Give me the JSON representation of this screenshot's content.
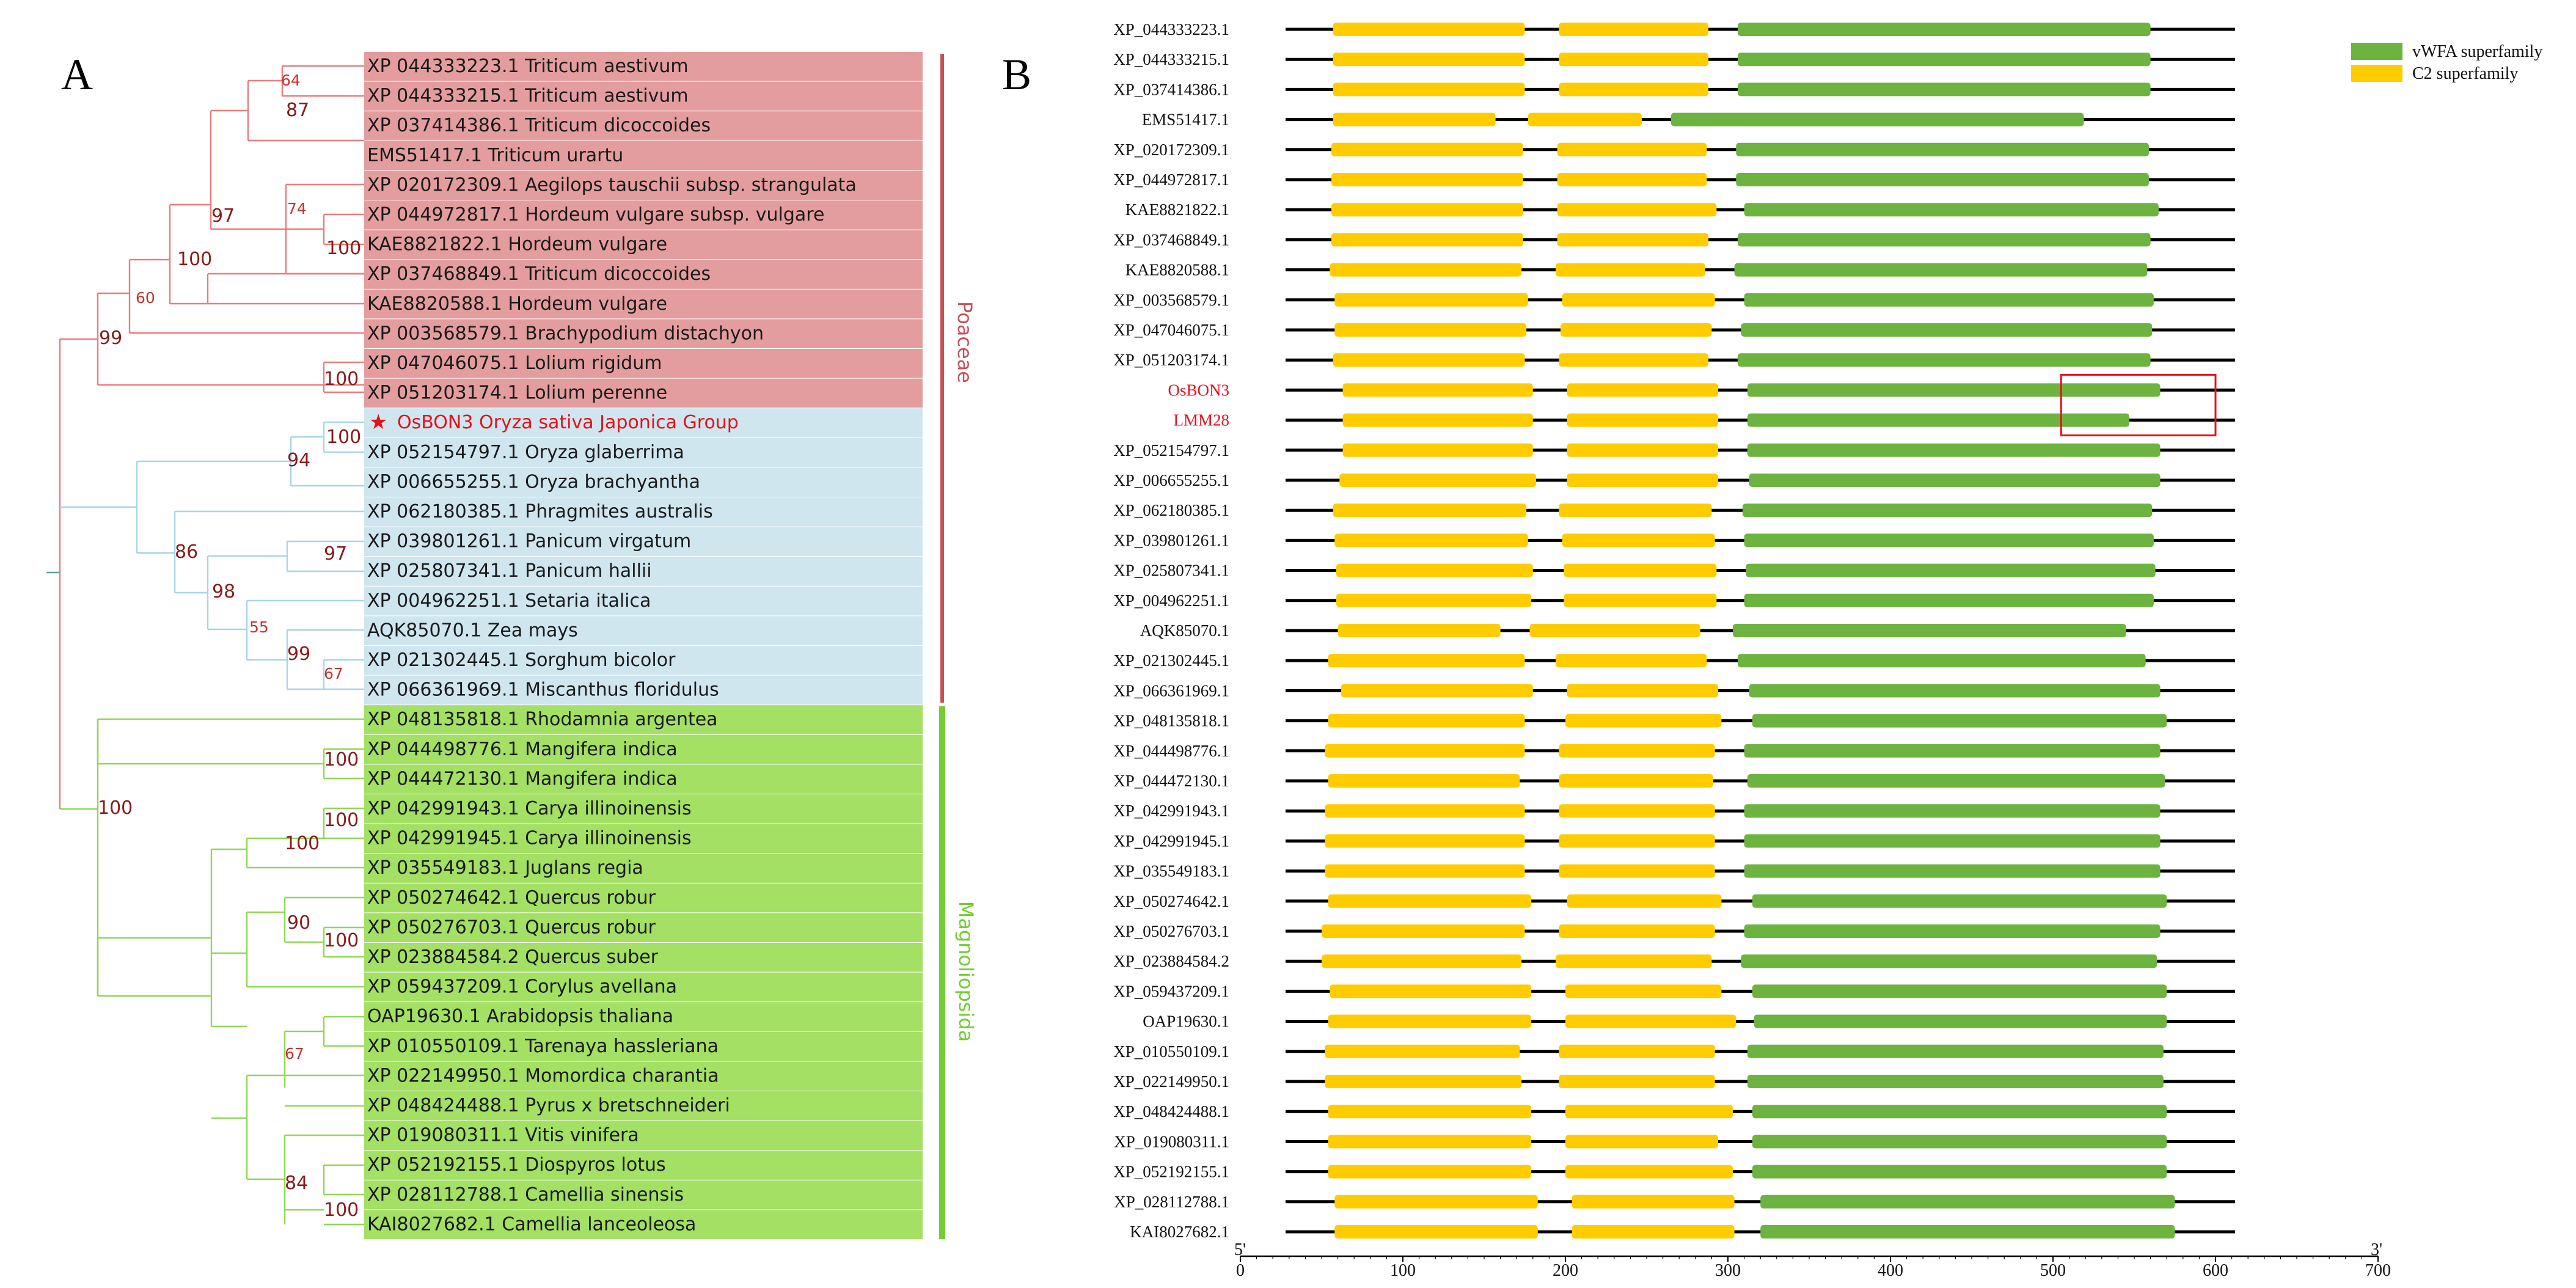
{
  "panels": {
    "a_label": "A",
    "b_label": "B"
  },
  "colors": {
    "poaceae_bg": "#e49d9e",
    "oryza_bg": "#cfe6ef",
    "magnoliopsida_bg": "#a3e064",
    "poaceae_line": "#c8525a",
    "magnoliopsida_line": "#72cc33",
    "poaceae_branch": "#ee7a7a",
    "oryza_branch": "#a8d4e8",
    "magnoliopsida_branch": "#8ed855",
    "vwfa": "#6db33f",
    "c2": "#ffcc00",
    "highlight": "#e8101a"
  },
  "tree": {
    "taxa": [
      {
        "label": "XP 044333223.1 Triticum aestivum",
        "group": "poaceae"
      },
      {
        "label": "XP 044333215.1 Triticum aestivum",
        "group": "poaceae"
      },
      {
        "label": "XP 037414386.1 Triticum dicoccoides",
        "group": "poaceae"
      },
      {
        "label": "EMS51417.1 Triticum urartu",
        "group": "poaceae"
      },
      {
        "label": "XP 020172309.1 Aegilops tauschii subsp. strangulata",
        "group": "poaceae"
      },
      {
        "label": "XP 044972817.1 Hordeum vulgare subsp. vulgare",
        "group": "poaceae"
      },
      {
        "label": "KAE8821822.1 Hordeum vulgare",
        "group": "poaceae"
      },
      {
        "label": "XP 037468849.1 Triticum dicoccoides",
        "group": "poaceae"
      },
      {
        "label": "KAE8820588.1 Hordeum vulgare",
        "group": "poaceae"
      },
      {
        "label": "XP 003568579.1 Brachypodium distachyon",
        "group": "poaceae"
      },
      {
        "label": "XP 047046075.1 Lolium rigidum",
        "group": "poaceae"
      },
      {
        "label": "XP 051203174.1 Lolium perenne",
        "group": "poaceae"
      },
      {
        "label": "OsBON3 Oryza sativa Japonica Group",
        "group": "oryza",
        "highlight": true
      },
      {
        "label": "XP 052154797.1 Oryza glaberrima",
        "group": "oryza"
      },
      {
        "label": "XP 006655255.1 Oryza brachyantha",
        "group": "oryza"
      },
      {
        "label": "XP 062180385.1 Phragmites australis",
        "group": "oryza"
      },
      {
        "label": "XP 039801261.1 Panicum virgatum",
        "group": "oryza"
      },
      {
        "label": "XP 025807341.1 Panicum hallii",
        "group": "oryza"
      },
      {
        "label": "XP 004962251.1 Setaria italica",
        "group": "oryza"
      },
      {
        "label": "AQK85070.1 Zea mays",
        "group": "oryza"
      },
      {
        "label": "XP 021302445.1 Sorghum bicolor",
        "group": "oryza"
      },
      {
        "label": "XP 066361969.1 Miscanthus floridulus",
        "group": "oryza"
      },
      {
        "label": "XP 048135818.1 Rhodamnia argentea",
        "group": "magnoliopsida"
      },
      {
        "label": "XP 044498776.1 Mangifera indica",
        "group": "magnoliopsida"
      },
      {
        "label": "XP 044472130.1 Mangifera indica",
        "group": "magnoliopsida"
      },
      {
        "label": "XP 042991943.1 Carya illinoinensis",
        "group": "magnoliopsida"
      },
      {
        "label": "XP 042991945.1 Carya illinoinensis",
        "group": "magnoliopsida"
      },
      {
        "label": "XP 035549183.1 Juglans regia",
        "group": "magnoliopsida"
      },
      {
        "label": "XP 050274642.1 Quercus robur",
        "group": "magnoliopsida"
      },
      {
        "label": "XP 050276703.1 Quercus robur",
        "group": "magnoliopsida"
      },
      {
        "label": "XP 023884584.2 Quercus suber",
        "group": "magnoliopsida"
      },
      {
        "label": "XP 059437209.1 Corylus avellana",
        "group": "magnoliopsida"
      },
      {
        "label": "OAP19630.1 Arabidopsis thaliana",
        "group": "magnoliopsida"
      },
      {
        "label": "XP 010550109.1 Tarenaya hassleriana",
        "group": "magnoliopsida"
      },
      {
        "label": "XP 022149950.1 Momordica charantia",
        "group": "magnoliopsida"
      },
      {
        "label": "XP 048424488.1 Pyrus x bretschneideri",
        "group": "magnoliopsida"
      },
      {
        "label": "XP 019080311.1 Vitis vinifera",
        "group": "magnoliopsida"
      },
      {
        "label": "XP 052192155.1 Diospyros lotus",
        "group": "magnoliopsida"
      },
      {
        "label": "XP 028112788.1 Camellia sinensis",
        "group": "magnoliopsida"
      },
      {
        "label": "KAI8027682.1 Camellia lanceoleosa",
        "group": "magnoliopsida"
      }
    ],
    "bootstrap": [
      {
        "value": "64",
        "size": "sm"
      },
      {
        "value": "87",
        "size": "lg"
      },
      {
        "value": "74",
        "size": "sm"
      },
      {
        "value": "100",
        "size": "lg"
      },
      {
        "value": "97",
        "size": "lg"
      },
      {
        "value": "100",
        "size": "lg"
      },
      {
        "value": "60",
        "size": "sm"
      },
      {
        "value": "100",
        "size": "lg"
      },
      {
        "value": "99",
        "size": "lg"
      },
      {
        "value": "100",
        "size": "lg"
      },
      {
        "value": "94",
        "size": "lg"
      },
      {
        "value": "97",
        "size": "lg"
      },
      {
        "value": "55",
        "size": "sm"
      },
      {
        "value": "99",
        "size": "lg"
      },
      {
        "value": "67",
        "size": "sm"
      },
      {
        "value": "98",
        "size": "lg"
      },
      {
        "value": "86",
        "size": "lg"
      },
      {
        "value": "100",
        "size": "lg"
      },
      {
        "value": "100",
        "size": "lg"
      },
      {
        "value": "100",
        "size": "lg"
      },
      {
        "value": "100",
        "size": "lg"
      },
      {
        "value": "90",
        "size": "lg"
      },
      {
        "value": "100",
        "size": "lg"
      },
      {
        "value": "67",
        "size": "sm"
      },
      {
        "value": "84",
        "size": "lg"
      },
      {
        "value": "100",
        "size": "lg"
      }
    ],
    "clades": {
      "poaceae": "Poaceae",
      "magnoliopsida": "Magnoliopsida"
    }
  },
  "chart_data": {
    "type": "domain-architecture",
    "x_axis": {
      "min": 0,
      "max": 700,
      "ticks": [
        0,
        100,
        200,
        300,
        400,
        500,
        600,
        700
      ],
      "start_label": "5'",
      "end_label": "3'"
    },
    "legend": [
      {
        "name": "vWFA superfamily",
        "color": "#6db33f"
      },
      {
        "name": "C2 superfamily",
        "color": "#ffcc00"
      }
    ],
    "proteins": [
      {
        "id": "XP_044333223.1",
        "length": 612,
        "c2": [
          [
            57,
            175
          ],
          [
            196,
            288
          ]
        ],
        "vwfa": [
          [
            306,
            560
          ]
        ]
      },
      {
        "id": "XP_044333215.1",
        "length": 612,
        "c2": [
          [
            57,
            175
          ],
          [
            196,
            288
          ]
        ],
        "vwfa": [
          [
            306,
            560
          ]
        ]
      },
      {
        "id": "XP_037414386.1",
        "length": 612,
        "c2": [
          [
            57,
            175
          ],
          [
            196,
            288
          ]
        ],
        "vwfa": [
          [
            306,
            560
          ]
        ]
      },
      {
        "id": "EMS51417.1",
        "length": 612,
        "c2": [
          [
            57,
            157
          ],
          [
            177,
            247
          ]
        ],
        "vwfa": [
          [
            265,
            519
          ]
        ]
      },
      {
        "id": "XP_020172309.1",
        "length": 612,
        "c2": [
          [
            56,
            174
          ],
          [
            195,
            287
          ]
        ],
        "vwfa": [
          [
            305,
            559
          ]
        ]
      },
      {
        "id": "XP_044972817.1",
        "length": 612,
        "c2": [
          [
            56,
            174
          ],
          [
            195,
            287
          ]
        ],
        "vwfa": [
          [
            305,
            559
          ]
        ]
      },
      {
        "id": "KAE8821822.1",
        "length": 612,
        "c2": [
          [
            56,
            174
          ],
          [
            195,
            293
          ]
        ],
        "vwfa": [
          [
            310,
            565
          ]
        ]
      },
      {
        "id": "XP_037468849.1",
        "length": 612,
        "c2": [
          [
            56,
            174
          ],
          [
            195,
            288
          ]
        ],
        "vwfa": [
          [
            306,
            560
          ]
        ]
      },
      {
        "id": "KAE8820588.1",
        "length": 612,
        "c2": [
          [
            55,
            173
          ],
          [
            194,
            286
          ]
        ],
        "vwfa": [
          [
            304,
            558
          ]
        ]
      },
      {
        "id": "XP_003568579.1",
        "length": 612,
        "c2": [
          [
            58,
            177
          ],
          [
            198,
            292
          ]
        ],
        "vwfa": [
          [
            310,
            562
          ]
        ]
      },
      {
        "id": "XP_047046075.1",
        "length": 612,
        "c2": [
          [
            58,
            176
          ],
          [
            197,
            290
          ]
        ],
        "vwfa": [
          [
            308,
            561
          ]
        ]
      },
      {
        "id": "XP_051203174.1",
        "length": 612,
        "c2": [
          [
            57,
            175
          ],
          [
            196,
            288
          ]
        ],
        "vwfa": [
          [
            306,
            560
          ]
        ]
      },
      {
        "id": "OsBON3",
        "length": 612,
        "c2": [
          [
            63,
            180
          ],
          [
            201,
            294
          ]
        ],
        "vwfa": [
          [
            312,
            566
          ]
        ],
        "highlight": true
      },
      {
        "id": "LMM28",
        "length": 612,
        "c2": [
          [
            63,
            180
          ],
          [
            201,
            294
          ]
        ],
        "vwfa": [
          [
            312,
            547
          ]
        ],
        "highlight": true
      },
      {
        "id": "XP_052154797.1",
        "length": 612,
        "c2": [
          [
            63,
            180
          ],
          [
            201,
            294
          ]
        ],
        "vwfa": [
          [
            312,
            566
          ]
        ]
      },
      {
        "id": "XP_006655255.1",
        "length": 612,
        "c2": [
          [
            61,
            182
          ],
          [
            201,
            294
          ]
        ],
        "vwfa": [
          [
            313,
            566
          ]
        ]
      },
      {
        "id": "XP_062180385.1",
        "length": 612,
        "c2": [
          [
            57,
            176
          ],
          [
            196,
            290
          ]
        ],
        "vwfa": [
          [
            309,
            561
          ]
        ]
      },
      {
        "id": "XP_039801261.1",
        "length": 612,
        "c2": [
          [
            58,
            177
          ],
          [
            198,
            292
          ]
        ],
        "vwfa": [
          [
            310,
            562
          ]
        ]
      },
      {
        "id": "XP_025807341.1",
        "length": 612,
        "c2": [
          [
            59,
            180
          ],
          [
            199,
            293
          ]
        ],
        "vwfa": [
          [
            311,
            563
          ]
        ]
      },
      {
        "id": "XP_004962251.1",
        "length": 612,
        "c2": [
          [
            59,
            179
          ],
          [
            199,
            293
          ]
        ],
        "vwfa": [
          [
            310,
            562
          ]
        ]
      },
      {
        "id": "AQK85070.1",
        "length": 612,
        "c2": [
          [
            60,
            160
          ],
          [
            178,
            283
          ]
        ],
        "vwfa": [
          [
            303,
            545
          ]
        ]
      },
      {
        "id": "XP_021302445.1",
        "length": 612,
        "c2": [
          [
            54,
            175
          ],
          [
            194,
            287
          ]
        ],
        "vwfa": [
          [
            306,
            557
          ]
        ]
      },
      {
        "id": "XP_066361969.1",
        "length": 612,
        "c2": [
          [
            62,
            180
          ],
          [
            201,
            294
          ]
        ],
        "vwfa": [
          [
            313,
            566
          ]
        ]
      },
      {
        "id": "XP_048135818.1",
        "length": 612,
        "c2": [
          [
            54,
            175
          ],
          [
            200,
            296
          ]
        ],
        "vwfa": [
          [
            315,
            570
          ]
        ]
      },
      {
        "id": "XP_044498776.1",
        "length": 612,
        "c2": [
          [
            52,
            175
          ],
          [
            196,
            292
          ]
        ],
        "vwfa": [
          [
            310,
            566
          ]
        ]
      },
      {
        "id": "XP_044472130.1",
        "length": 612,
        "c2": [
          [
            54,
            172
          ],
          [
            196,
            291
          ]
        ],
        "vwfa": [
          [
            312,
            569
          ]
        ]
      },
      {
        "id": "XP_042991943.1",
        "length": 612,
        "c2": [
          [
            52,
            175
          ],
          [
            196,
            292
          ]
        ],
        "vwfa": [
          [
            310,
            566
          ]
        ]
      },
      {
        "id": "XP_042991945.1",
        "length": 612,
        "c2": [
          [
            52,
            175
          ],
          [
            196,
            292
          ]
        ],
        "vwfa": [
          [
            310,
            566
          ]
        ]
      },
      {
        "id": "XP_035549183.1",
        "length": 612,
        "c2": [
          [
            52,
            175
          ],
          [
            196,
            292
          ]
        ],
        "vwfa": [
          [
            310,
            566
          ]
        ]
      },
      {
        "id": "XP_050274642.1",
        "length": 612,
        "c2": [
          [
            54,
            179
          ],
          [
            201,
            296
          ]
        ],
        "vwfa": [
          [
            315,
            570
          ]
        ]
      },
      {
        "id": "XP_050276703.1",
        "length": 612,
        "c2": [
          [
            50,
            175
          ],
          [
            196,
            292
          ]
        ],
        "vwfa": [
          [
            310,
            566
          ]
        ]
      },
      {
        "id": "XP_023884584.2",
        "length": 612,
        "c2": [
          [
            50,
            173
          ],
          [
            194,
            290
          ]
        ],
        "vwfa": [
          [
            308,
            564
          ]
        ]
      },
      {
        "id": "XP_059437209.1",
        "length": 612,
        "c2": [
          [
            55,
            179
          ],
          [
            200,
            296
          ]
        ],
        "vwfa": [
          [
            315,
            570
          ]
        ]
      },
      {
        "id": "OAP19630.1",
        "length": 612,
        "c2": [
          [
            54,
            179
          ],
          [
            200,
            305
          ]
        ],
        "vwfa": [
          [
            316,
            570
          ]
        ]
      },
      {
        "id": "XP_010550109.1",
        "length": 612,
        "c2": [
          [
            52,
            172
          ],
          [
            196,
            292
          ]
        ],
        "vwfa": [
          [
            312,
            568
          ]
        ]
      },
      {
        "id": "XP_022149950.1",
        "length": 612,
        "c2": [
          [
            52,
            173
          ],
          [
            196,
            292
          ]
        ],
        "vwfa": [
          [
            312,
            568
          ]
        ]
      },
      {
        "id": "XP_048424488.1",
        "length": 612,
        "c2": [
          [
            54,
            179
          ],
          [
            200,
            303
          ]
        ],
        "vwfa": [
          [
            315,
            570
          ]
        ]
      },
      {
        "id": "XP_019080311.1",
        "length": 612,
        "c2": [
          [
            54,
            179
          ],
          [
            200,
            294
          ]
        ],
        "vwfa": [
          [
            315,
            570
          ]
        ]
      },
      {
        "id": "XP_052192155.1",
        "length": 612,
        "c2": [
          [
            54,
            179
          ],
          [
            200,
            303
          ]
        ],
        "vwfa": [
          [
            315,
            570
          ]
        ]
      },
      {
        "id": "XP_028112788.1",
        "length": 612,
        "c2": [
          [
            58,
            183
          ],
          [
            204,
            304
          ]
        ],
        "vwfa": [
          [
            320,
            575
          ]
        ]
      },
      {
        "id": "KAI8027682.1",
        "length": 612,
        "c2": [
          [
            58,
            183
          ],
          [
            204,
            304
          ]
        ],
        "vwfa": [
          [
            320,
            575
          ]
        ]
      }
    ]
  }
}
